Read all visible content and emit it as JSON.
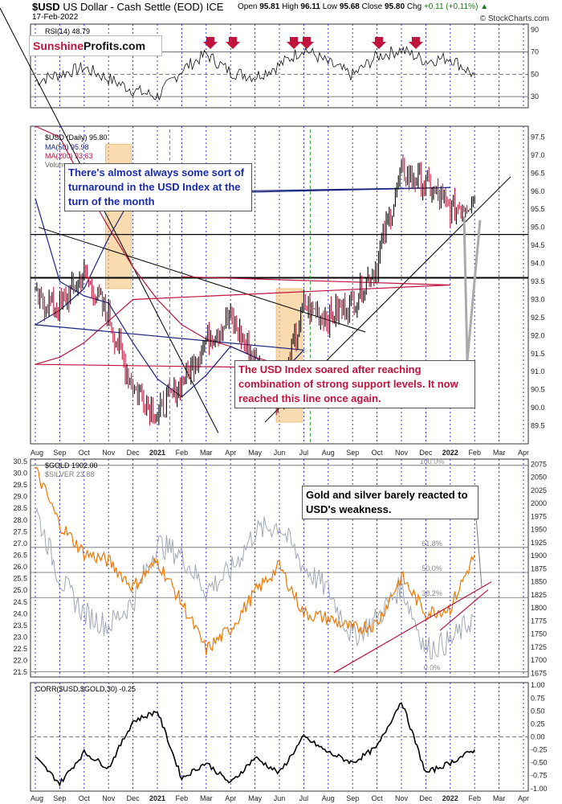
{
  "header": {
    "symbol": "$USD",
    "name": "US Dollar - Cash Settle (EOD) ICE",
    "date": "17-Feb-2022",
    "open_label": "Open",
    "open": "95.81",
    "high_label": "High",
    "high": "96.11",
    "low_label": "Low",
    "low": "95.68",
    "close_label": "Close",
    "close": "95.80",
    "chg_label": "Chg",
    "chg": "+0.11 (+0.11%)",
    "credit": "© StockCharts.com"
  },
  "logo": {
    "part1": "Sunshine",
    "part2": "Profits.com"
  },
  "annotations": {
    "turnaround": "There's almost always some sort of turnaround in the USD Index at the turn of the month",
    "support": "The USD Index soared after reaching combination of strong support levels. It now reached this line once again.",
    "gold_silver": "Gold and silver barely reacted to USD's weakness."
  },
  "colors": {
    "usd_line": "#000000",
    "usd_down": "#c0143c",
    "ma50": "#1a237e",
    "ma200": "#c0143c",
    "gold": "#f07800",
    "silver": "#a0a8b4",
    "highlight": "#f5c37a",
    "gridline": "#2222cc",
    "annotation_blue": "#1a2bb0",
    "annotation_red": "#c0143c"
  },
  "x_axis": {
    "months": [
      "Aug",
      "Sep",
      "Oct",
      "Nov",
      "Dec",
      "2021",
      "Feb",
      "Mar",
      "Apr",
      "May",
      "Jun",
      "Jul",
      "Aug",
      "Sep",
      "Oct",
      "Nov",
      "Dec",
      "2022",
      "Feb",
      "Mar",
      "Apr"
    ],
    "bold": [
      "2021",
      "2022"
    ]
  },
  "chart_data": [
    {
      "type": "line",
      "title": "RSI(14) 48.79",
      "legend": [
        "RSI(14) 48.79"
      ],
      "y_ticks": [
        30,
        50,
        70,
        90
      ],
      "ylim": [
        20,
        95
      ],
      "reference_lines": [
        30,
        50,
        70
      ],
      "x": [
        "Aug",
        "Sep",
        "Oct",
        "Nov",
        "Dec",
        "2021",
        "Feb",
        "Mar",
        "Apr",
        "May",
        "Jun",
        "Jul",
        "Aug",
        "Sep",
        "Oct",
        "Nov",
        "Dec",
        "2022",
        "Feb"
      ],
      "values": [
        44,
        50,
        56,
        46,
        36,
        30,
        54,
        68,
        52,
        48,
        58,
        73,
        60,
        49,
        66,
        72,
        62,
        65,
        48.79
      ],
      "markers": {
        "shape": "down-arrow",
        "count": 6,
        "color": "#c0143c"
      }
    },
    {
      "type": "line",
      "title": "$USD (Daily) 95.80",
      "legend": [
        "$USD (Daily) 95.80",
        "MA(50) 95.98",
        "MA(200) 93.63",
        "Volume"
      ],
      "y_ticks": [
        89.5,
        90.0,
        90.5,
        91.0,
        91.5,
        92.0,
        92.5,
        93.0,
        93.5,
        94.0,
        94.5,
        95.0,
        95.5,
        96.0,
        96.5,
        97.0,
        97.5
      ],
      "ylim": [
        89.0,
        97.8
      ],
      "series": [
        {
          "name": "$USD (Daily) 95.80",
          "x": [
            "Aug",
            "Sep",
            "Oct",
            "Nov",
            "Dec",
            "2021",
            "Feb",
            "Mar",
            "Apr",
            "May",
            "Jun",
            "Jul",
            "Aug",
            "Sep",
            "Oct",
            "Nov",
            "Dec",
            "2022",
            "Feb"
          ],
          "values": [
            93.0,
            92.8,
            93.7,
            92.5,
            90.6,
            89.8,
            90.7,
            91.9,
            92.5,
            91.3,
            90.2,
            92.8,
            92.5,
            92.9,
            94.0,
            96.5,
            96.2,
            95.5,
            95.8
          ]
        },
        {
          "name": "MA(50) 95.98",
          "x": [
            "Aug",
            "Sep",
            "Oct",
            "Nov",
            "Dec",
            "2021",
            "Feb",
            "Mar",
            "Apr",
            "May",
            "Jun",
            "Jul",
            "Aug",
            "Sep",
            "Oct",
            "Nov",
            "Dec",
            "2022",
            "Feb"
          ],
          "values": [
            95.8,
            93.5,
            93.1,
            92.9,
            91.8,
            90.8,
            90.3,
            90.9,
            91.7,
            91.4,
            90.9,
            91.6,
            92.3,
            92.7,
            93.3,
            94.7,
            95.9,
            96.1,
            95.98
          ]
        },
        {
          "name": "MA(200) 93.63",
          "x": [
            "Aug",
            "Sep",
            "Oct",
            "Nov",
            "Dec",
            "2021",
            "Feb",
            "Mar",
            "Apr",
            "May",
            "Jun",
            "Jul",
            "Aug",
            "Sep",
            "Oct",
            "Nov",
            "Dec",
            "2022",
            "Feb"
          ],
          "values": [
            98.6,
            97.5,
            96.2,
            95.0,
            93.9,
            93.0,
            92.3,
            91.9,
            91.7,
            91.4,
            91.2,
            91.1,
            91.2,
            91.4,
            91.8,
            92.4,
            93.0,
            93.4,
            93.63
          ]
        }
      ],
      "horizontal_lines": [
        93.6,
        94.8
      ],
      "highlight_boxes": [
        {
          "x": [
            "Jun",
            "Jul"
          ],
          "y": [
            89.6,
            93.3
          ]
        },
        {
          "x": [
            "Nov",
            "Dec"
          ],
          "y": [
            93.3,
            97.3
          ]
        }
      ]
    },
    {
      "type": "line",
      "title": "$GOLD 1902.00",
      "legend": [
        "$GOLD 1902.00",
        "$SILVER 23.88"
      ],
      "y_ticks_left": [
        21.5,
        22.0,
        22.5,
        23.0,
        23.5,
        24.0,
        24.5,
        25.0,
        25.5,
        26.0,
        26.5,
        27.0,
        27.5,
        28.0,
        28.5,
        29.0,
        29.5,
        30.0,
        30.5
      ],
      "y_ticks_right": [
        1675,
        1700,
        1725,
        1750,
        1775,
        1800,
        1825,
        1850,
        1875,
        1900,
        1925,
        1950,
        1975,
        2000,
        2025,
        2050,
        2075
      ],
      "ylim_left": [
        21.3,
        30.6
      ],
      "ylim_right": [
        1668,
        2085
      ],
      "fib_levels": [
        {
          "label": "100.0%",
          "value": 2073
        },
        {
          "label": "61.8%",
          "value": 1916
        },
        {
          "label": "50.0%",
          "value": 1868
        },
        {
          "label": "38.2%",
          "value": 1820
        },
        {
          "label": "0.0%",
          "value": 1678
        }
      ],
      "series": [
        {
          "name": "$GOLD 1902.00",
          "x": [
            "Aug",
            "Sep",
            "Oct",
            "Nov",
            "Dec",
            "2021",
            "Feb",
            "Mar",
            "Apr",
            "May",
            "Jun",
            "Jul",
            "Aug",
            "Sep",
            "Oct",
            "Nov",
            "Dec",
            "2022",
            "Feb"
          ],
          "values": [
            2065,
            1960,
            1905,
            1890,
            1840,
            1890,
            1810,
            1720,
            1760,
            1830,
            1880,
            1790,
            1780,
            1760,
            1770,
            1860,
            1790,
            1800,
            1902
          ]
        },
        {
          "name": "$SILVER 23.88",
          "x": [
            "Aug",
            "Sep",
            "Oct",
            "Nov",
            "Dec",
            "2021",
            "Feb",
            "Mar",
            "Apr",
            "May",
            "Jun",
            "Jul",
            "Aug",
            "Sep",
            "Oct",
            "Nov",
            "Dec",
            "2022",
            "Feb"
          ],
          "values": [
            28.5,
            25.5,
            24.0,
            23.5,
            24.5,
            27.0,
            26.5,
            25.0,
            25.8,
            27.5,
            27.8,
            26.0,
            25.0,
            23.0,
            23.8,
            25.2,
            22.5,
            22.8,
            23.88
          ]
        }
      ]
    },
    {
      "type": "line",
      "title": "CORR($USD,$GOLD,30) -0.25",
      "legend": [
        "CORR($USD,$GOLD,30) -0.25"
      ],
      "y_ticks": [
        -1.0,
        -0.75,
        -0.5,
        -0.25,
        0.0,
        0.25,
        0.5,
        0.75,
        1.0
      ],
      "ylim": [
        -1.05,
        1.05
      ],
      "reference_lines": [
        0.0
      ],
      "x": [
        "Aug",
        "Sep",
        "Oct",
        "Nov",
        "Dec",
        "2021",
        "Feb",
        "Mar",
        "Apr",
        "May",
        "Jun",
        "Jul",
        "Aug",
        "Sep",
        "Oct",
        "Nov",
        "Dec",
        "2022",
        "Feb"
      ],
      "values": [
        -0.4,
        -0.9,
        -0.3,
        -0.6,
        0.3,
        0.5,
        -0.8,
        -0.5,
        -0.9,
        -0.4,
        -0.7,
        0.0,
        -0.3,
        -0.5,
        -0.2,
        0.7,
        -0.7,
        -0.5,
        -0.25
      ]
    }
  ]
}
